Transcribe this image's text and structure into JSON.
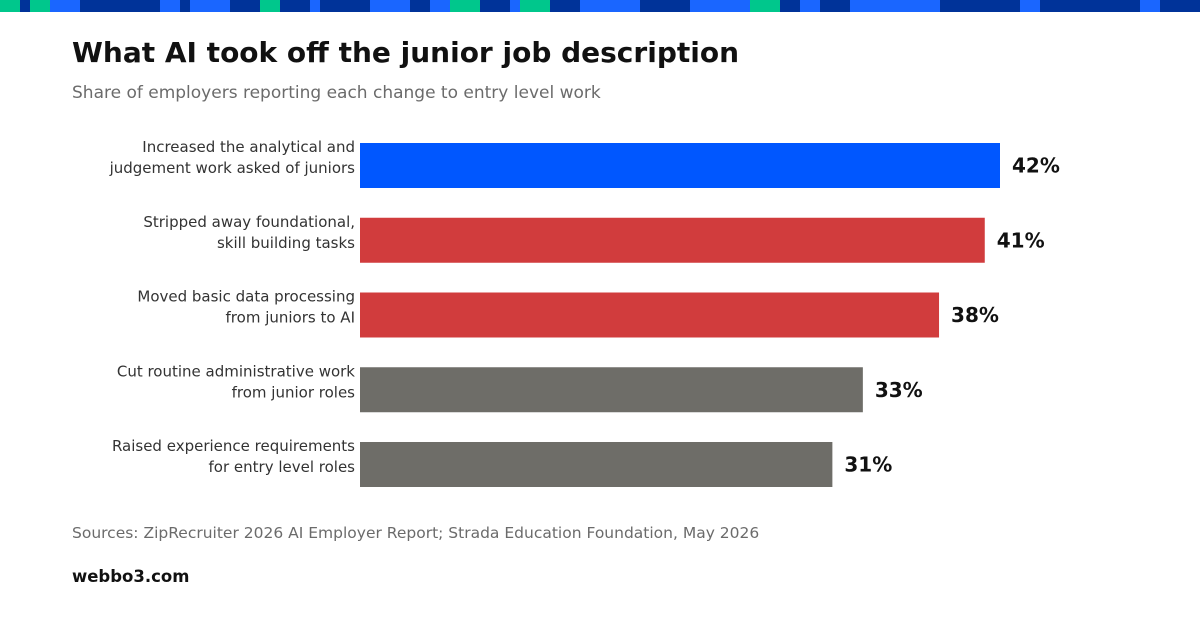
{
  "header": {
    "title": "What AI took off the junior job description",
    "subtitle": "Share of employers reporting each change to entry level work"
  },
  "footer": {
    "sources": "Sources: ZipRecruiter 2026 AI Employer Report; Strada Education Foundation, May 2026",
    "brand": "webbo3.com"
  },
  "colors": {
    "blue": "#0057ff",
    "red": "#d13c3d",
    "gray": "#6e6d68",
    "strip_navy": "#003399",
    "strip_blue": "#1a66ff",
    "strip_green": "#00c78c"
  },
  "chart_data": {
    "type": "bar",
    "orientation": "horizontal",
    "categories": [
      [
        "Increased the analytical and",
        "judgement work asked of juniors"
      ],
      [
        "Stripped away foundational,",
        "skill building tasks"
      ],
      [
        "Moved basic data processing",
        "from juniors to AI"
      ],
      [
        "Cut routine administrative work",
        "from junior roles"
      ],
      [
        "Raised experience requirements",
        "for entry level roles"
      ]
    ],
    "values": [
      42,
      41,
      38,
      33,
      31
    ],
    "value_labels": [
      "42%",
      "41%",
      "38%",
      "33%",
      "31%"
    ],
    "bar_colors": [
      "#0057ff",
      "#d13c3d",
      "#d13c3d",
      "#6e6d68",
      "#6e6d68"
    ],
    "xlim": [
      0,
      42
    ],
    "grid": false,
    "legend": "none",
    "xlabel": "",
    "ylabel": ""
  }
}
